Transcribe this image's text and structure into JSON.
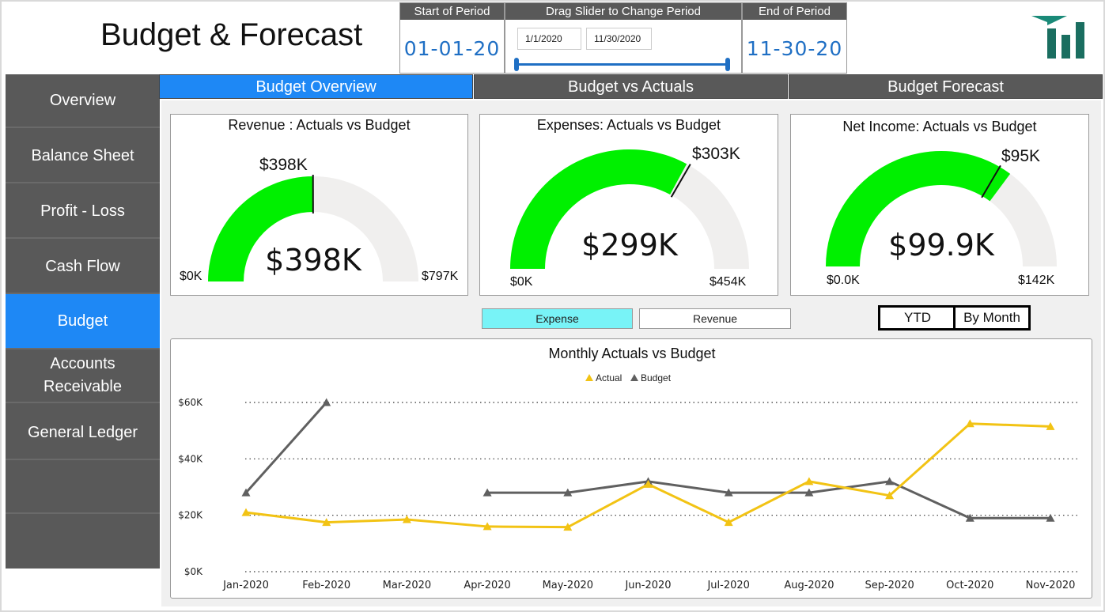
{
  "header": {
    "title": "Budget & Forecast",
    "start_caption": "Start of Period",
    "start_value": "01-01-20",
    "slider_caption": "Drag Slider to Change Period",
    "slider_from": "1/1/2020",
    "slider_to": "11/30/2020",
    "end_caption": "End of Period",
    "end_value": "11-30-20",
    "accent": "#1f6fc4"
  },
  "sidebar": {
    "items": [
      {
        "label": "Overview",
        "active": false
      },
      {
        "label": "Balance Sheet",
        "active": false
      },
      {
        "label": "Profit - Loss",
        "active": false
      },
      {
        "label": "Cash Flow",
        "active": false
      },
      {
        "label": "Budget",
        "active": true
      },
      {
        "label": "Accounts Receivable",
        "active": false
      },
      {
        "label": "General Ledger",
        "active": false
      }
    ],
    "bg": "#595959",
    "active_bg": "#1e88f5"
  },
  "tabs": [
    {
      "label": "Budget Overview",
      "active": true
    },
    {
      "label": "Budget vs Actuals",
      "active": false
    },
    {
      "label": "Budget Forecast",
      "active": false
    }
  ],
  "gauges": [
    {
      "title": "Revenue : Actuals vs Budget",
      "value_label": "$398K",
      "target_label": "$398K",
      "min_label": "$0K",
      "max_label": "$797K",
      "value": 398,
      "target": 398,
      "max": 797
    },
    {
      "title": "Expenses: Actuals vs Budget",
      "value_label": "$299K",
      "target_label": "$303K",
      "min_label": "$0K",
      "max_label": "$454K",
      "value": 299,
      "target": 303,
      "max": 454
    },
    {
      "title": "Net Income: Actuals vs Budget",
      "value_label": "$99.9K",
      "target_label": "$95K",
      "min_label": "$0.0K",
      "max_label": "$142K",
      "value": 99.9,
      "target": 95,
      "max": 142
    }
  ],
  "gauge_colors": {
    "fill": "#00f000",
    "track": "#f0efee"
  },
  "toggles": {
    "expense": "Expense",
    "revenue": "Revenue",
    "ytd": "YTD",
    "by_month": "By Month"
  },
  "chart_data": {
    "type": "line",
    "title": "Monthly Actuals vs Budget",
    "categories": [
      "Jan-2020",
      "Feb-2020",
      "Mar-2020",
      "Apr-2020",
      "May-2020",
      "Jun-2020",
      "Jul-2020",
      "Aug-2020",
      "Sep-2020",
      "Oct-2020",
      "Nov-2020"
    ],
    "series": [
      {
        "name": "Actual",
        "color": "#f2c314",
        "values": [
          21,
          17.5,
          18.5,
          16,
          15.8,
          31,
          17.5,
          32,
          27,
          52.5,
          51.5
        ]
      },
      {
        "name": "Budget",
        "color": "#606060",
        "values": [
          28,
          60,
          null,
          28,
          28,
          32,
          28,
          28,
          32,
          19,
          19
        ]
      }
    ],
    "yticks": [
      "$0K",
      "$20K",
      "$40K",
      "$60K"
    ],
    "ylim": [
      0,
      60
    ],
    "legend": "top-center",
    "grid": true
  }
}
